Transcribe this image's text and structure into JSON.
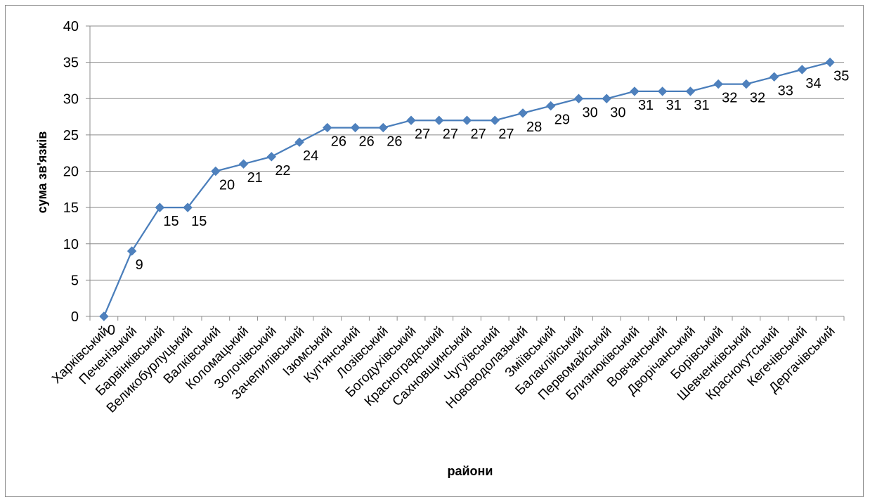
{
  "chart_data": {
    "type": "line",
    "title": "",
    "xlabel": "райони",
    "ylabel": "сума зв'язків",
    "ylim": [
      0,
      40
    ],
    "yticks": [
      0,
      5,
      10,
      15,
      20,
      25,
      30,
      35,
      40
    ],
    "grid": "horizontal",
    "legend": "none",
    "colors": {
      "line": "#4a7ebb",
      "marker": "#4f81bd",
      "grid": "#8c8c8c"
    },
    "marker": "diamond",
    "categories": [
      "Харківський",
      "Печенізький",
      "Барвінківський",
      "Великобурлуцький",
      "Валківський",
      "Коломацький",
      "Золочівський",
      "Зачепилівський",
      "Ізюмський",
      "Куп'янський",
      "Лозівський",
      "Богодухівський",
      "Красноградський",
      "Сахновщинський",
      "Чугуївський",
      "Нововодолазький",
      "Зміївський",
      "Балаклійський",
      "Первомайський",
      "Близнюківський",
      "Вовчанський",
      "Дворічанський",
      "Борівський",
      "Шевченківський",
      "Краснокутський",
      "Кегечівський",
      "Дергачівський"
    ],
    "series": [
      {
        "values": [
          0,
          9,
          15,
          15,
          20,
          21,
          22,
          24,
          26,
          26,
          26,
          27,
          27,
          27,
          27,
          28,
          29,
          30,
          30,
          31,
          31,
          31,
          32,
          32,
          33,
          34,
          35
        ],
        "labels": [
          "0",
          "9",
          "15",
          "15",
          "20",
          "21",
          "22",
          "24",
          "26",
          "26",
          "26",
          "27",
          "27",
          "27",
          "27",
          "28",
          "29",
          "30",
          "30",
          "31",
          "31",
          "31",
          "32",
          "32",
          "33",
          "34",
          "35"
        ]
      }
    ]
  }
}
